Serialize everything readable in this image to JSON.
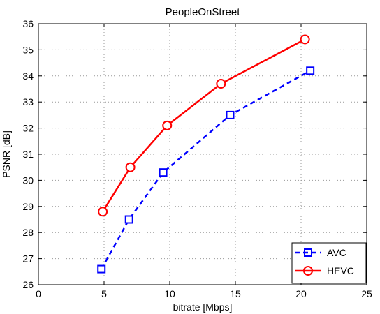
{
  "chart_data": {
    "type": "line",
    "title": "PeopleOnStreet",
    "xlabel": "bitrate [Mbps]",
    "ylabel": "PSNR [dB]",
    "xlim": [
      0,
      25
    ],
    "ylim": [
      26,
      36
    ],
    "xticks": [
      0,
      5,
      10,
      15,
      20,
      25
    ],
    "yticks": [
      26,
      27,
      28,
      29,
      30,
      31,
      32,
      33,
      34,
      35,
      36
    ],
    "grid": true,
    "legend_position": "bottom-right",
    "series": [
      {
        "name": "AVC",
        "color": "#0000ff",
        "line_style": "dashed",
        "marker": "square",
        "x": [
          4.8,
          6.9,
          9.5,
          14.6,
          20.7
        ],
        "y": [
          26.6,
          28.5,
          30.3,
          32.5,
          34.2
        ]
      },
      {
        "name": "HEVC",
        "color": "#ff0000",
        "line_style": "solid",
        "marker": "circle",
        "x": [
          4.9,
          7.0,
          9.8,
          13.9,
          20.3
        ],
        "y": [
          28.8,
          30.5,
          32.1,
          33.7,
          35.4
        ]
      }
    ]
  }
}
